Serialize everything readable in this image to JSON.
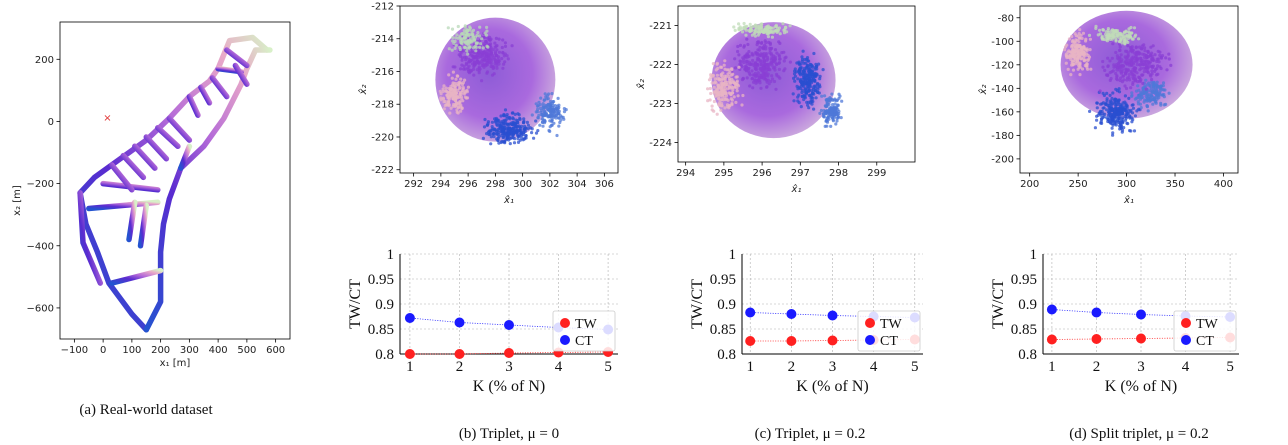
{
  "captions": {
    "a": "(a) Real-world dataset",
    "b": "(b) Triplet, μ = 0",
    "c": "(c) Triplet, μ = 0.2",
    "d": "(d) Split triplet, μ = 0.2"
  },
  "colors": {
    "tw": "#ff2020",
    "ct": "#1a1aff",
    "grid": "#b0b0b0",
    "marker_x": "#e03030"
  },
  "chart_data": [
    {
      "id": "a",
      "type": "scatter",
      "title": "",
      "xlabel": "x₁ [m]",
      "ylabel": "x₂ [m]",
      "xlim": [
        -150,
        650
      ],
      "ylim": [
        -700,
        320
      ],
      "xticks": [
        "−100",
        "0",
        "100",
        "200",
        "300",
        "400",
        "500",
        "600"
      ],
      "xtick_values": [
        -100,
        0,
        100,
        200,
        300,
        400,
        500,
        600
      ],
      "yticks": [
        "200",
        "0",
        "−200",
        "−400",
        "−600"
      ],
      "ytick_values": [
        200,
        0,
        -200,
        -400,
        -600
      ],
      "annotations": [
        {
          "marker": "×",
          "x": 15,
          "y": 12
        }
      ],
      "grid": false
    },
    {
      "id": "b-scatter",
      "type": "scatter",
      "title": "",
      "xlabel": "x̂₁",
      "ylabel": "x̂₂",
      "xlim": [
        291,
        307
      ],
      "ylim": [
        -222.2,
        -212
      ],
      "xticks": [
        "292",
        "294",
        "296",
        "298",
        "300",
        "302",
        "304",
        "306"
      ],
      "xtick_values": [
        292,
        294,
        296,
        298,
        300,
        302,
        304,
        306
      ],
      "yticks": [
        "-212",
        "-214",
        "-216",
        "-218",
        "-220",
        "-222"
      ],
      "ytick_values": [
        -212,
        -214,
        -216,
        -218,
        -220,
        -222
      ],
      "grid": false
    },
    {
      "id": "c-scatter",
      "type": "scatter",
      "title": "",
      "xlabel": "x̂₁",
      "ylabel": "x̂₂",
      "xlim": [
        293.8,
        300
      ],
      "ylim": [
        -224.5,
        -220.5
      ],
      "xticks": [
        "294",
        "295",
        "296",
        "297",
        "298",
        "299"
      ],
      "xtick_values": [
        294,
        295,
        296,
        297,
        298,
        299
      ],
      "yticks": [
        "-221",
        "-222",
        "-223",
        "-224"
      ],
      "ytick_values": [
        -221,
        -222,
        -223,
        -224
      ],
      "grid": false
    },
    {
      "id": "d-scatter",
      "type": "scatter",
      "title": "",
      "xlabel": "x̂₁",
      "ylabel": "x̂₂",
      "xlim": [
        190,
        415
      ],
      "ylim": [
        -212,
        -70
      ],
      "xticks": [
        "200",
        "250",
        "300",
        "350",
        "400"
      ],
      "xtick_values": [
        200,
        250,
        300,
        350,
        400
      ],
      "yticks": [
        "-80",
        "-100",
        "-120",
        "-140",
        "-160",
        "-180",
        "-200"
      ],
      "ytick_values": [
        -80,
        -100,
        -120,
        -140,
        -160,
        -180,
        -200
      ],
      "grid": false
    },
    {
      "id": "b-line",
      "type": "line",
      "title": "",
      "xlabel": "K (% of N)",
      "ylabel": "TW/CT",
      "x": [
        1,
        2,
        3,
        4,
        5
      ],
      "xlim": [
        0.8,
        5.2
      ],
      "ylim": [
        0.8,
        1.0
      ],
      "yticks": [
        "1",
        "0.95",
        "0.9",
        "0.85",
        "0.8"
      ],
      "ytick_values": [
        1,
        0.95,
        0.9,
        0.85,
        0.8
      ],
      "grid": true,
      "legend_position": "bottom-right",
      "series": [
        {
          "name": "TW",
          "values": [
            0.8,
            0.8,
            0.802,
            0.803,
            0.804
          ]
        },
        {
          "name": "CT",
          "values": [
            0.872,
            0.863,
            0.858,
            0.853,
            0.849
          ]
        }
      ]
    },
    {
      "id": "c-line",
      "type": "line",
      "title": "",
      "xlabel": "K (% of N)",
      "ylabel": "TW/CT",
      "x": [
        1,
        2,
        3,
        4,
        5
      ],
      "xlim": [
        0.8,
        5.2
      ],
      "ylim": [
        0.8,
        1.0
      ],
      "yticks": [
        "1",
        "0.95",
        "0.9",
        "0.85",
        "0.8"
      ],
      "ytick_values": [
        1,
        0.95,
        0.9,
        0.85,
        0.8
      ],
      "grid": true,
      "legend_position": "bottom-right",
      "series": [
        {
          "name": "TW",
          "values": [
            0.826,
            0.826,
            0.827,
            0.828,
            0.829
          ]
        },
        {
          "name": "CT",
          "values": [
            0.883,
            0.88,
            0.877,
            0.875,
            0.873
          ]
        }
      ]
    },
    {
      "id": "d-line",
      "type": "line",
      "title": "",
      "xlabel": "K (% of N)",
      "ylabel": "TW/CT",
      "x": [
        1,
        2,
        3,
        4,
        5
      ],
      "xlim": [
        0.8,
        5.2
      ],
      "ylim": [
        0.8,
        1.0
      ],
      "yticks": [
        "1",
        "0.95",
        "0.9",
        "0.85",
        "0.8"
      ],
      "ytick_values": [
        1,
        0.95,
        0.9,
        0.85,
        0.8
      ],
      "grid": true,
      "legend_position": "bottom-right",
      "series": [
        {
          "name": "TW",
          "values": [
            0.829,
            0.83,
            0.831,
            0.832,
            0.833
          ]
        },
        {
          "name": "CT",
          "values": [
            0.889,
            0.883,
            0.879,
            0.876,
            0.874
          ]
        }
      ]
    }
  ]
}
